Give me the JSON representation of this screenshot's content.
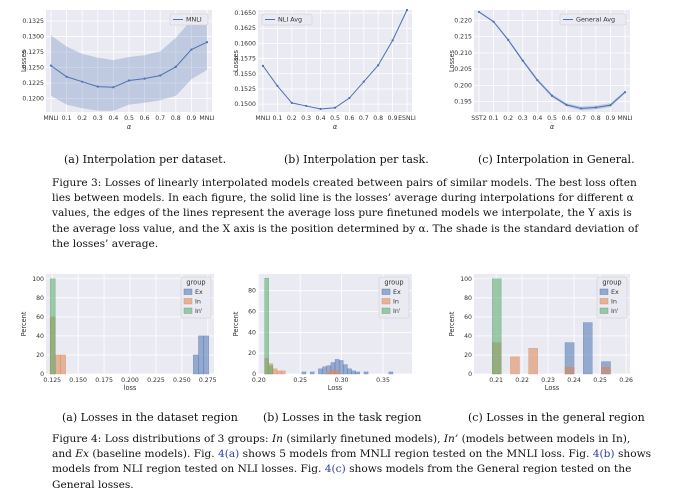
{
  "figure3": {
    "subcaptions": [
      "(a)  Interpolation per dataset.",
      "(b)  Interpolation per task.",
      "(c)  Interpolation in General."
    ],
    "caption": {
      "label": "Figure 3:",
      "text": "Losses of linearly interpolated models created between pairs of similar models. The best loss often lies between models. In each figure, the solid line is the losses’ average during interpolations for different α values, the edges of the lines represent the average loss pure finetuned models we interpolate, the Y axis is the average loss value, and the X axis is the position determined by α. The shade is the standard deviation of the losses’ average."
    }
  },
  "figure4": {
    "subcaptions": [
      "(a)  Losses in the dataset region",
      "(b)  Losses in the task region",
      "(c)  Losses in the general region"
    ],
    "caption": {
      "label": "Figure 4:",
      "part1": "Loss distributions of 3 groups: ",
      "in_term": "In",
      "part2": " (similarly finetuned models), ",
      "inp_term": "In’",
      "part3": " (models between models in In), and ",
      "ex_term": "Ex",
      "part4": " (baseline models). Fig. ",
      "ref_a": "4(a)",
      "part5": " shows 5 models from MNLI region tested on the MNLI loss. Fig. ",
      "ref_b": "4(b)",
      "part6": " shows models from NLI region tested on NLI losses. Fig. ",
      "ref_c": "4(c)",
      "part7": " shows models from the General region tested on the General losses."
    }
  },
  "chart_data": [
    {
      "type": "line",
      "id": "fig3a",
      "legend": [
        "MNLI"
      ],
      "legend_position": "top-right",
      "ylabel": "Losses",
      "xlabel": "α",
      "x": [
        0,
        0.1,
        0.2,
        0.3,
        0.4,
        0.5,
        0.6,
        0.7,
        0.8,
        0.9,
        1
      ],
      "xtick_labels": [
        "MNLI",
        "0.1",
        "0.2",
        "0.3",
        "0.4",
        "0.5",
        "0.6",
        "0.7",
        "0.8",
        "0.9",
        "MNLI"
      ],
      "series": [
        {
          "name": "MNLI",
          "values": [
            0.1253,
            0.1235,
            0.1227,
            0.1219,
            0.1218,
            0.1229,
            0.1232,
            0.1237,
            0.1251,
            0.1279,
            0.1291
          ]
        }
      ],
      "band_upper": [
        0.1302,
        0.1284,
        0.1272,
        0.1266,
        0.1262,
        0.1267,
        0.127,
        0.1276,
        0.1298,
        0.1327,
        0.1336
      ],
      "band_lower": [
        0.1204,
        0.119,
        0.1184,
        0.118,
        0.118,
        0.119,
        0.1193,
        0.1197,
        0.1204,
        0.1231,
        0.1246
      ],
      "ylim": [
        0.1178,
        0.1343
      ],
      "yticks": [
        "0.1200",
        "0.1225",
        "0.1250",
        "0.1275",
        "0.1300",
        "0.1325"
      ],
      "ytick_values": [
        0.12,
        0.1225,
        0.125,
        0.1275,
        0.13,
        0.1325
      ],
      "color": "#4c72b0",
      "grid": true
    },
    {
      "type": "line",
      "id": "fig3b",
      "legend": [
        "NLI Avg"
      ],
      "legend_position": "top-left",
      "ylabel": "Losses",
      "xlabel": "α",
      "x": [
        0,
        0.1,
        0.2,
        0.3,
        0.4,
        0.5,
        0.6,
        0.7,
        0.8,
        0.9,
        1
      ],
      "xtick_labels": [
        "MNLI",
        "0.1",
        "0.2",
        "0.3",
        "0.4",
        "0.5",
        "0.6",
        "0.7",
        "0.8",
        "0.9",
        "ESNLI"
      ],
      "series": [
        {
          "name": "NLI Avg",
          "values": [
            0.1563,
            0.153,
            0.1502,
            0.1497,
            0.1492,
            0.1494,
            0.151,
            0.1537,
            0.1564,
            0.1605,
            0.1655
          ]
        }
      ],
      "ylim": [
        0.1487,
        0.1655
      ],
      "yticks": [
        "0.1500",
        "0.1525",
        "0.1550",
        "0.1575",
        "0.1600",
        "0.1625",
        "0.1650"
      ],
      "ytick_values": [
        0.15,
        0.1525,
        0.155,
        0.1575,
        0.16,
        0.1625,
        0.165
      ],
      "color": "#4c72b0",
      "grid": true
    },
    {
      "type": "line",
      "id": "fig3c",
      "legend": [
        "General Avg"
      ],
      "legend_position": "top-right",
      "ylabel": "Losses",
      "xlabel": "α",
      "x": [
        0,
        0.1,
        0.2,
        0.3,
        0.4,
        0.5,
        0.6,
        0.7,
        0.8,
        0.9,
        1
      ],
      "xtick_labels": [
        "SST2",
        "0.1",
        "0.2",
        "0.3",
        "0.4",
        "0.5",
        "0.6",
        "0.7",
        "0.8",
        "0.9",
        "MNLI"
      ],
      "series": [
        {
          "name": "General Avg",
          "values": [
            0.2226,
            0.2196,
            0.214,
            0.2076,
            0.2016,
            0.1968,
            0.194,
            0.1929,
            0.1932,
            0.1939,
            0.1979
          ]
        }
      ],
      "band_upper": [
        0.2228,
        0.2199,
        0.2144,
        0.2081,
        0.2021,
        0.1973,
        0.1945,
        0.1935,
        0.1938,
        0.1945,
        0.1983
      ],
      "band_lower": [
        0.2224,
        0.2193,
        0.2136,
        0.2071,
        0.2011,
        0.1963,
        0.1935,
        0.1923,
        0.1926,
        0.1933,
        0.1975
      ],
      "ylim": [
        0.1918,
        0.2232
      ],
      "yticks": [
        "0.195",
        "0.200",
        "0.205",
        "0.210",
        "0.215",
        "0.220"
      ],
      "ytick_values": [
        0.195,
        0.2,
        0.205,
        0.21,
        0.215,
        0.22
      ],
      "color": "#4c72b0",
      "grid": true
    },
    {
      "type": "bar",
      "id": "fig4a",
      "xlabel": "loss",
      "ylabel": "Percent",
      "legend_title": "group",
      "legend": [
        "Ex",
        "In",
        "In'"
      ],
      "legend_position": "top-right",
      "xlim": [
        0.119,
        0.281
      ],
      "ylim": [
        0,
        105
      ],
      "xticks": [
        "0.125",
        "0.150",
        "0.175",
        "0.200",
        "0.225",
        "0.250",
        "0.275"
      ],
      "xtick_values": [
        0.125,
        0.15,
        0.175,
        0.2,
        0.225,
        0.25,
        0.275
      ],
      "yticks": [
        "0",
        "20",
        "40",
        "60",
        "80",
        "100"
      ],
      "ytick_values": [
        0,
        20,
        40,
        60,
        80,
        100
      ],
      "bin_width": 0.005,
      "series": [
        {
          "name": "Ex",
          "color": "#4c72b0",
          "bins": [
            [
              0.261,
              20
            ],
            [
              0.266,
              40
            ],
            [
              0.271,
              40
            ]
          ]
        },
        {
          "name": "In",
          "color": "#dd8452",
          "bins": [
            [
              0.123,
              60
            ],
            [
              0.128,
              20
            ],
            [
              0.133,
              20
            ]
          ]
        },
        {
          "name": "In'",
          "color": "#55a868",
          "bins": [
            [
              0.123,
              100
            ]
          ]
        }
      ],
      "grid": true
    },
    {
      "type": "bar",
      "id": "fig4b",
      "xlabel": "Loss",
      "ylabel": "Percent",
      "legend_title": "group",
      "legend": [
        "Ex",
        "In",
        "In'"
      ],
      "legend_position": "top-right",
      "xlim": [
        0.199,
        0.385
      ],
      "ylim": [
        0,
        96
      ],
      "xticks": [
        "0.20",
        "0.25",
        "0.30",
        "0.35"
      ],
      "xtick_values": [
        0.2,
        0.25,
        0.3,
        0.35
      ],
      "yticks": [
        "0",
        "20",
        "40",
        "60",
        "80"
      ],
      "ytick_values": [
        0,
        20,
        40,
        60,
        80
      ],
      "bin_width": 0.005,
      "series": [
        {
          "name": "Ex",
          "color": "#4c72b0",
          "bins": [
            [
              0.252,
              2
            ],
            [
              0.262,
              2
            ],
            [
              0.272,
              5
            ],
            [
              0.277,
              7
            ],
            [
              0.282,
              8
            ],
            [
              0.287,
              11
            ],
            [
              0.292,
              14
            ],
            [
              0.297,
              13
            ],
            [
              0.302,
              9
            ],
            [
              0.307,
              5
            ],
            [
              0.312,
              3
            ],
            [
              0.317,
              2
            ],
            [
              0.327,
              2
            ],
            [
              0.357,
              2
            ]
          ]
        },
        {
          "name": "In",
          "color": "#dd8452",
          "bins": [
            [
              0.207,
              15
            ],
            [
              0.212,
              10
            ],
            [
              0.217,
              5
            ],
            [
              0.222,
              3
            ],
            [
              0.227,
              3
            ],
            [
              0.282,
              2
            ],
            [
              0.287,
              4
            ],
            [
              0.292,
              3
            ]
          ]
        },
        {
          "name": "In'",
          "color": "#55a868",
          "bins": [
            [
              0.207,
              92
            ],
            [
              0.212,
              8
            ]
          ]
        }
      ],
      "grid": true
    },
    {
      "type": "bar",
      "id": "fig4c",
      "xlabel": "Loss",
      "ylabel": "Percent",
      "legend_title": "group",
      "legend": [
        "Ex",
        "In",
        "In'"
      ],
      "legend_position": "top-right",
      "xlim": [
        0.2015,
        0.2615
      ],
      "ylim": [
        0,
        105
      ],
      "xticks": [
        "0.21",
        "0.22",
        "0.23",
        "0.24",
        "0.25",
        "0.26"
      ],
      "xtick_values": [
        0.21,
        0.22,
        0.23,
        0.24,
        0.25,
        0.26
      ],
      "yticks": [
        "0",
        "20",
        "40",
        "60",
        "80",
        "100"
      ],
      "ytick_values": [
        0,
        20,
        40,
        60,
        80,
        100
      ],
      "bin_width": 0.0035,
      "series": [
        {
          "name": "Ex",
          "color": "#4c72b0",
          "bins": [
            [
              0.2365,
              33
            ],
            [
              0.2435,
              54
            ],
            [
              0.2505,
              13
            ]
          ]
        },
        {
          "name": "In",
          "color": "#dd8452",
          "bins": [
            [
              0.2085,
              33
            ],
            [
              0.2155,
              18
            ],
            [
              0.2225,
              27
            ],
            [
              0.2365,
              7
            ],
            [
              0.2505,
              7
            ]
          ]
        },
        {
          "name": "In'",
          "color": "#55a868",
          "bins": [
            [
              0.2085,
              100
            ]
          ]
        }
      ],
      "grid": true
    }
  ]
}
